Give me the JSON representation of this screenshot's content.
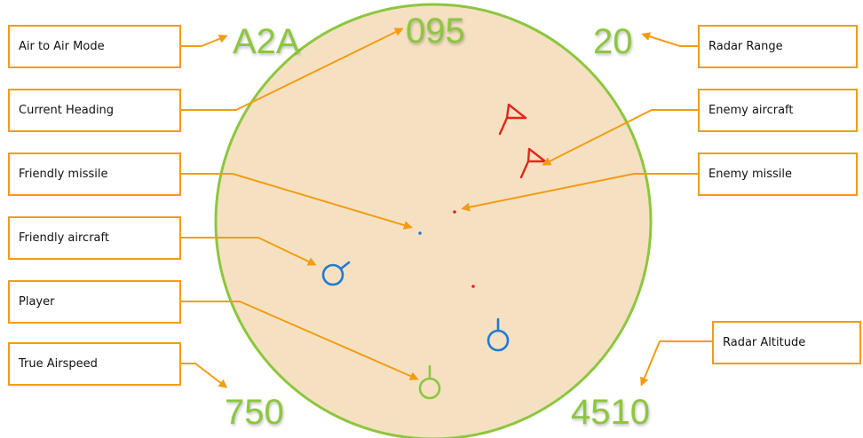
{
  "hud": {
    "mode": "A2A",
    "heading": "095",
    "radar_range": "20",
    "airspeed": "750",
    "altitude": "4510"
  },
  "labels": {
    "mode": "Air to Air Mode",
    "heading": "Current Heading",
    "friendly_missile": "Friendly missile",
    "friendly_aircraft": "Friendly aircraft",
    "player": "Player",
    "airspeed": "True Airspeed",
    "radar_range": "Radar Range",
    "enemy_aircraft": "Enemy aircraft",
    "enemy_missile": "Enemy missile",
    "radar_altitude": "Radar Altitude"
  },
  "colors": {
    "radar_fill": "#f5e1c2",
    "radar_border": "#8dc63f",
    "callout": "#f39c12",
    "enemy": "#e0261b",
    "friendly": "#1f7bd1",
    "player": "#8dc63f",
    "hud_text": "#8dc63f"
  }
}
